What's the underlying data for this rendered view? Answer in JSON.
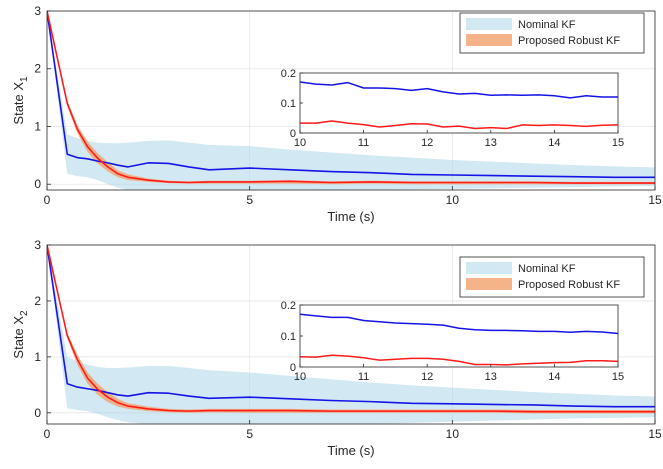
{
  "colors": {
    "nominal_line": "#1414e6",
    "nominal_band": "#a6d1e6",
    "robust_line": "#ff1a1a",
    "robust_band": "#f2a673",
    "axis": "#262626",
    "grid": "#e6e6e6"
  },
  "chart_data": [
    {
      "type": "line",
      "id": "x1",
      "ylabel_main": "State X",
      "ylabel_sub": "1",
      "xlabel": "Time (s)",
      "xlim": [
        0,
        15
      ],
      "ylim": [
        -0.1,
        3
      ],
      "xticks": [
        0,
        5,
        10,
        15
      ],
      "yticks": [
        0,
        1,
        2,
        3
      ],
      "grid": true,
      "legend_position": "top-right",
      "legend": [
        "Nominal KF",
        "Proposed Robust KF"
      ],
      "x": [
        0,
        0.5,
        0.75,
        1,
        1.25,
        1.5,
        1.75,
        2,
        2.5,
        3,
        3.5,
        4,
        5,
        6,
        7,
        8,
        9,
        10,
        11,
        12,
        13,
        14,
        15
      ],
      "series": [
        {
          "name": "Nominal KF",
          "values": [
            3.0,
            0.52,
            0.46,
            0.44,
            0.4,
            0.37,
            0.33,
            0.3,
            0.37,
            0.36,
            0.3,
            0.25,
            0.28,
            0.25,
            0.22,
            0.2,
            0.17,
            0.16,
            0.15,
            0.14,
            0.13,
            0.12,
            0.12
          ],
          "band_lower": [
            3.0,
            0.18,
            0.14,
            0.12,
            0.07,
            0.0,
            -0.06,
            -0.1,
            -0.1,
            -0.1,
            -0.1,
            -0.1,
            -0.1,
            -0.1,
            -0.1,
            -0.1,
            -0.09,
            -0.08,
            -0.07,
            -0.06,
            -0.05,
            -0.04,
            -0.03
          ],
          "band_upper": [
            3.0,
            0.86,
            0.8,
            0.76,
            0.72,
            0.71,
            0.71,
            0.72,
            0.75,
            0.76,
            0.72,
            0.68,
            0.66,
            0.6,
            0.55,
            0.5,
            0.46,
            0.42,
            0.39,
            0.36,
            0.33,
            0.31,
            0.29
          ]
        },
        {
          "name": "Proposed Robust KF",
          "values": [
            3.0,
            1.4,
            0.95,
            0.65,
            0.45,
            0.3,
            0.18,
            0.12,
            0.07,
            0.04,
            0.03,
            0.04,
            0.04,
            0.05,
            0.03,
            0.04,
            0.03,
            0.03,
            0.03,
            0.03,
            0.02,
            0.02,
            0.02
          ],
          "band_lower": [
            3.0,
            1.35,
            0.88,
            0.56,
            0.36,
            0.22,
            0.12,
            0.07,
            0.04,
            0.02,
            0.01,
            0.01,
            0.01,
            0.01,
            0.0,
            0.01,
            0.0,
            0.0,
            0.0,
            0.0,
            0.0,
            0.0,
            0.0
          ],
          "band_upper": [
            3.0,
            1.45,
            1.02,
            0.74,
            0.54,
            0.38,
            0.24,
            0.17,
            0.1,
            0.06,
            0.05,
            0.06,
            0.06,
            0.07,
            0.05,
            0.06,
            0.05,
            0.05,
            0.05,
            0.05,
            0.04,
            0.04,
            0.04
          ]
        }
      ],
      "inset": {
        "xlim": [
          10,
          15
        ],
        "ylim": [
          0,
          0.2
        ],
        "xticks": [
          10,
          11,
          12,
          13,
          14,
          15
        ],
        "yticks": [
          "0",
          "0.1",
          "0.2"
        ],
        "x": [
          10,
          10.25,
          10.5,
          10.75,
          11,
          11.25,
          11.5,
          11.75,
          12,
          12.25,
          12.5,
          12.75,
          13,
          13.25,
          13.5,
          13.75,
          14,
          14.25,
          14.5,
          14.75,
          15
        ],
        "series": [
          {
            "name": "Nominal KF",
            "values": [
              0.17,
              0.163,
              0.16,
              0.168,
              0.15,
              0.15,
              0.148,
              0.142,
              0.148,
              0.137,
              0.13,
              0.132,
              0.126,
              0.127,
              0.126,
              0.127,
              0.124,
              0.117,
              0.124,
              0.12,
              0.12
            ]
          },
          {
            "name": "Proposed Robust KF",
            "values": [
              0.033,
              0.033,
              0.04,
              0.033,
              0.028,
              0.02,
              0.025,
              0.031,
              0.03,
              0.02,
              0.023,
              0.015,
              0.018,
              0.015,
              0.027,
              0.025,
              0.027,
              0.025,
              0.022,
              0.026,
              0.027
            ]
          }
        ]
      }
    },
    {
      "type": "line",
      "id": "x2",
      "ylabel_main": "State X",
      "ylabel_sub": "2",
      "xlabel": "Time (s)",
      "xlim": [
        0,
        15
      ],
      "ylim": [
        -0.2,
        3
      ],
      "xticks": [
        0,
        5,
        10,
        15
      ],
      "yticks": [
        0,
        1,
        2,
        3
      ],
      "grid": true,
      "legend_position": "top-right",
      "legend": [
        "Nominal KF",
        "Proposed Robust KF"
      ],
      "x": [
        0,
        0.5,
        0.75,
        1,
        1.25,
        1.5,
        1.75,
        2,
        2.5,
        3,
        3.5,
        4,
        5,
        6,
        7,
        8,
        9,
        10,
        11,
        12,
        13,
        14,
        15
      ],
      "series": [
        {
          "name": "Nominal KF",
          "values": [
            3.0,
            0.52,
            0.46,
            0.43,
            0.4,
            0.36,
            0.32,
            0.3,
            0.36,
            0.35,
            0.3,
            0.26,
            0.28,
            0.25,
            0.22,
            0.2,
            0.17,
            0.16,
            0.15,
            0.14,
            0.12,
            0.11,
            0.11
          ],
          "band_lower": [
            3.0,
            0.08,
            0.05,
            0.03,
            -0.02,
            -0.08,
            -0.13,
            -0.17,
            -0.2,
            -0.2,
            -0.2,
            -0.2,
            -0.2,
            -0.2,
            -0.2,
            -0.2,
            -0.18,
            -0.16,
            -0.14,
            -0.12,
            -0.1,
            -0.09,
            -0.08
          ],
          "band_upper": [
            3.0,
            1.0,
            0.92,
            0.86,
            0.82,
            0.8,
            0.8,
            0.81,
            0.84,
            0.84,
            0.8,
            0.76,
            0.72,
            0.66,
            0.6,
            0.54,
            0.49,
            0.45,
            0.41,
            0.37,
            0.34,
            0.31,
            0.29
          ]
        },
        {
          "name": "Proposed Robust KF",
          "values": [
            3.0,
            1.38,
            0.95,
            0.62,
            0.42,
            0.28,
            0.18,
            0.12,
            0.07,
            0.04,
            0.03,
            0.04,
            0.04,
            0.04,
            0.03,
            0.03,
            0.03,
            0.03,
            0.03,
            0.02,
            0.02,
            0.02,
            0.02
          ],
          "band_lower": [
            3.0,
            1.33,
            0.86,
            0.52,
            0.32,
            0.19,
            0.11,
            0.07,
            0.03,
            0.01,
            0.0,
            0.01,
            0.0,
            0.0,
            0.0,
            0.0,
            0.0,
            0.0,
            0.0,
            -0.01,
            -0.01,
            -0.01,
            -0.01
          ],
          "band_upper": [
            3.0,
            1.43,
            1.04,
            0.72,
            0.52,
            0.37,
            0.25,
            0.17,
            0.11,
            0.07,
            0.06,
            0.07,
            0.07,
            0.07,
            0.06,
            0.06,
            0.06,
            0.06,
            0.06,
            0.05,
            0.05,
            0.05,
            0.05
          ]
        }
      ],
      "inset": {
        "xlim": [
          10,
          15
        ],
        "ylim": [
          0,
          0.2
        ],
        "xticks": [
          10,
          11,
          12,
          13,
          14,
          15
        ],
        "yticks": [
          "0",
          "0.1",
          "0.2"
        ],
        "x": [
          10,
          10.25,
          10.5,
          10.75,
          11,
          11.25,
          11.5,
          11.75,
          12,
          12.25,
          12.5,
          12.75,
          13,
          13.25,
          13.5,
          13.75,
          14,
          14.25,
          14.5,
          14.75,
          15
        ],
        "series": [
          {
            "name": "Nominal KF",
            "values": [
              0.17,
              0.165,
              0.16,
              0.16,
              0.15,
              0.146,
              0.142,
              0.14,
              0.138,
              0.135,
              0.125,
              0.12,
              0.118,
              0.118,
              0.117,
              0.115,
              0.115,
              0.112,
              0.115,
              0.113,
              0.108
            ]
          },
          {
            "name": "Proposed Robust KF",
            "values": [
              0.033,
              0.032,
              0.038,
              0.035,
              0.03,
              0.022,
              0.025,
              0.028,
              0.028,
              0.025,
              0.018,
              0.008,
              0.008,
              0.007,
              0.01,
              0.012,
              0.014,
              0.015,
              0.02,
              0.02,
              0.018
            ]
          }
        ]
      }
    }
  ]
}
